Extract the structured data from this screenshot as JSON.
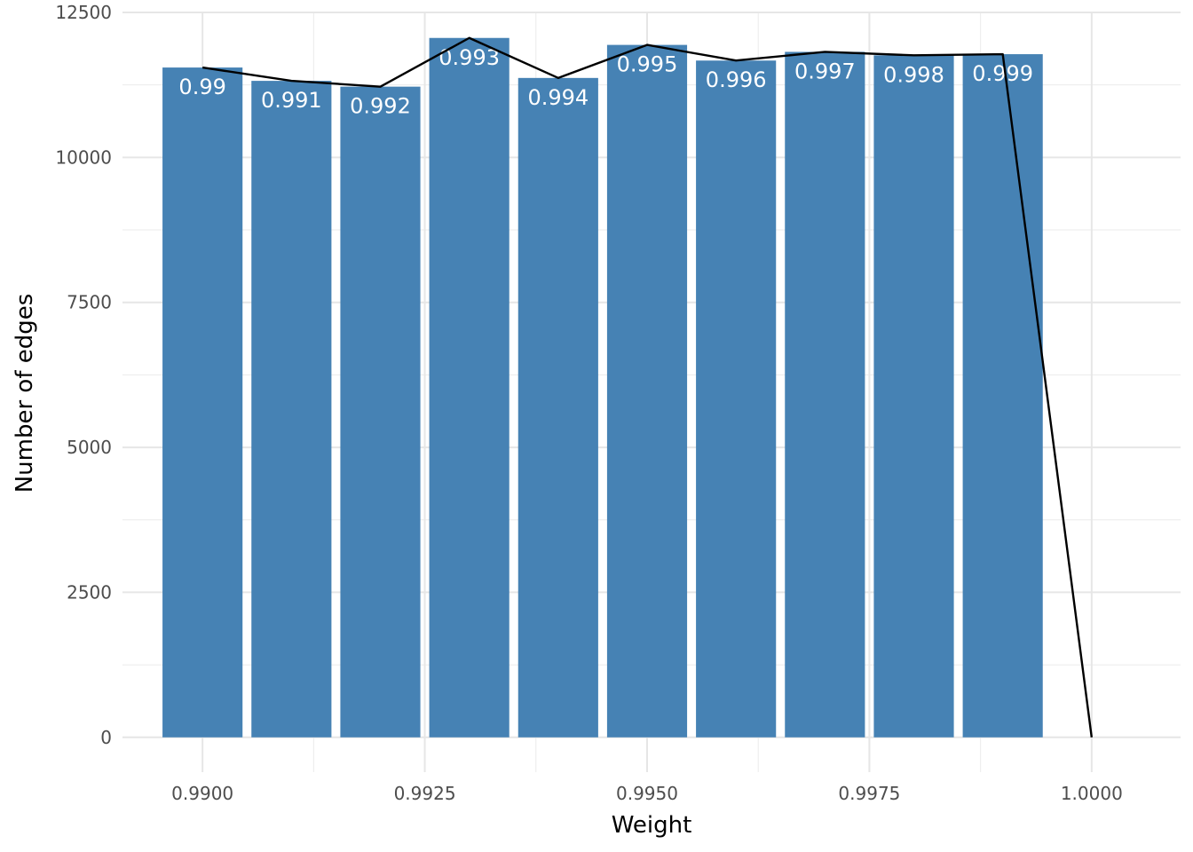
{
  "chart_data": {
    "type": "bar",
    "xlabel": "Weight",
    "ylabel": "Number of edges",
    "xlim": [
      0.9891,
      1.001
    ],
    "ylim": [
      -600,
      12500
    ],
    "x_ticks": [
      "0.9900",
      "0.9925",
      "0.9950",
      "0.9975",
      "1.0000"
    ],
    "x_tick_values": [
      0.99,
      0.9925,
      0.995,
      0.9975,
      1.0
    ],
    "y_ticks": [
      "0",
      "2500",
      "5000",
      "7500",
      "10000",
      "12500"
    ],
    "y_tick_values": [
      0,
      2500,
      5000,
      7500,
      10000,
      12500
    ],
    "bar_width": 0.0009,
    "grid": true,
    "bar_color": "#4682b4",
    "line_color": "#000000",
    "bars": [
      {
        "x": 0.99,
        "value": 11550,
        "label": "0.99"
      },
      {
        "x": 0.991,
        "value": 11320,
        "label": "0.991"
      },
      {
        "x": 0.992,
        "value": 11220,
        "label": "0.992"
      },
      {
        "x": 0.993,
        "value": 12060,
        "label": "0.993"
      },
      {
        "x": 0.994,
        "value": 11370,
        "label": "0.994"
      },
      {
        "x": 0.995,
        "value": 11940,
        "label": "0.995"
      },
      {
        "x": 0.996,
        "value": 11670,
        "label": "0.996"
      },
      {
        "x": 0.997,
        "value": 11820,
        "label": "0.997"
      },
      {
        "x": 0.998,
        "value": 11760,
        "label": "0.998"
      },
      {
        "x": 0.999,
        "value": 11780,
        "label": "0.999"
      }
    ],
    "line": {
      "x": [
        0.99,
        0.991,
        0.992,
        0.993,
        0.994,
        0.995,
        0.996,
        0.997,
        0.998,
        0.999,
        1.0
      ],
      "y": [
        11550,
        11320,
        11220,
        12060,
        11370,
        11940,
        11670,
        11820,
        11760,
        11780,
        0
      ]
    }
  }
}
